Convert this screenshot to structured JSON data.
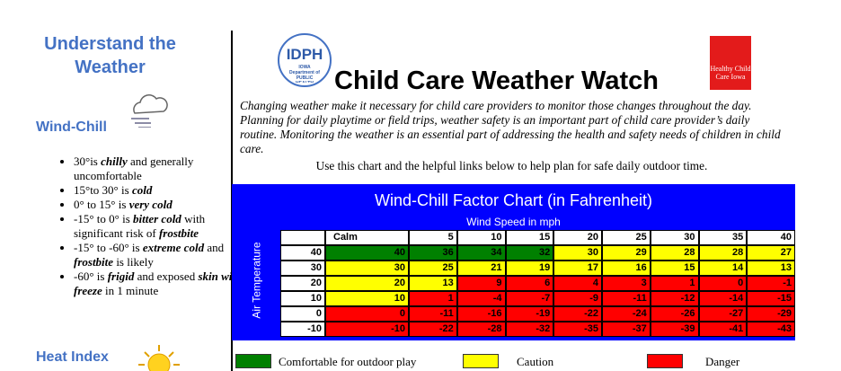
{
  "sidebar": {
    "heading": "Understand the Weather",
    "windchill": {
      "heading": "Wind-Chill",
      "bullets": [
        [
          "30°is ",
          "chilly",
          " and generally uncomfortable"
        ],
        [
          "15°to 30° is ",
          "cold"
        ],
        [
          "0° to 15° is ",
          "very cold"
        ],
        [
          "-15° to 0° is ",
          "bitter cold",
          " with significant risk of ",
          "frostbite"
        ],
        [
          "-15° to -60° is ",
          "extreme cold",
          " and ",
          "frostbite",
          " is likely"
        ],
        [
          "-60° is ",
          "frigid",
          " and exposed ",
          "skin will freeze",
          " in 1 minute"
        ]
      ]
    },
    "heat": {
      "heading": "Heat Index"
    }
  },
  "header": {
    "logo_left": {
      "abbr": "IDPH",
      "name": "IOWA Department of PUBLIC HEALTH"
    },
    "title": "Child Care Weather Watch",
    "logo_right": {
      "name": "Healthy Child Care Iowa"
    },
    "intro": "Changing weather make it necessary for child care providers to monitor those changes throughout the day. Planning for daily playtime or field trips, weather safety is an important part of child care provider’s daily routine. Monitoring the weather is an essential part of addressing the health and safety needs of children in child care.",
    "instruction": "Use this chart and the helpful links below to help plan for safe daily outdoor time."
  },
  "table": {
    "title": "Wind-Chill Factor Chart (in Fahrenheit)",
    "column_header": "Wind Speed in mph",
    "row_header": "Air Temperature",
    "columns": [
      "Calm",
      5,
      10,
      15,
      20,
      25,
      30,
      35,
      40
    ],
    "rows": [
      {
        "temp": 40,
        "values": [
          40,
          36,
          34,
          32,
          30,
          29,
          28,
          28,
          27
        ],
        "levels": [
          0,
          0,
          0,
          0,
          1,
          1,
          1,
          1,
          1
        ]
      },
      {
        "temp": 30,
        "values": [
          30,
          25,
          21,
          19,
          17,
          16,
          15,
          14,
          13
        ],
        "levels": [
          1,
          1,
          1,
          1,
          1,
          1,
          1,
          1,
          1
        ]
      },
      {
        "temp": 20,
        "values": [
          20,
          13,
          9,
          6,
          4,
          3,
          1,
          0,
          -1
        ],
        "levels": [
          1,
          1,
          2,
          2,
          2,
          2,
          2,
          2,
          2
        ]
      },
      {
        "temp": 10,
        "values": [
          10,
          1,
          -4,
          -7,
          -9,
          -11,
          -12,
          -14,
          -15
        ],
        "levels": [
          1,
          2,
          2,
          2,
          2,
          2,
          2,
          2,
          2
        ]
      },
      {
        "temp": 0,
        "values": [
          0,
          -11,
          -16,
          -19,
          -22,
          -24,
          -26,
          -27,
          -29
        ],
        "levels": [
          2,
          2,
          2,
          2,
          2,
          2,
          2,
          2,
          2
        ]
      },
      {
        "temp": -10,
        "values": [
          -10,
          -22,
          -28,
          -32,
          -35,
          -37,
          -39,
          -41,
          -43
        ],
        "levels": [
          2,
          2,
          2,
          2,
          2,
          2,
          2,
          2,
          2
        ]
      }
    ]
  },
  "legend": [
    {
      "label": "Comfortable for outdoor play",
      "color": "#008000"
    },
    {
      "label": "Caution",
      "color": "#ffff00"
    },
    {
      "label": "Danger",
      "color": "#ff0000"
    }
  ]
}
